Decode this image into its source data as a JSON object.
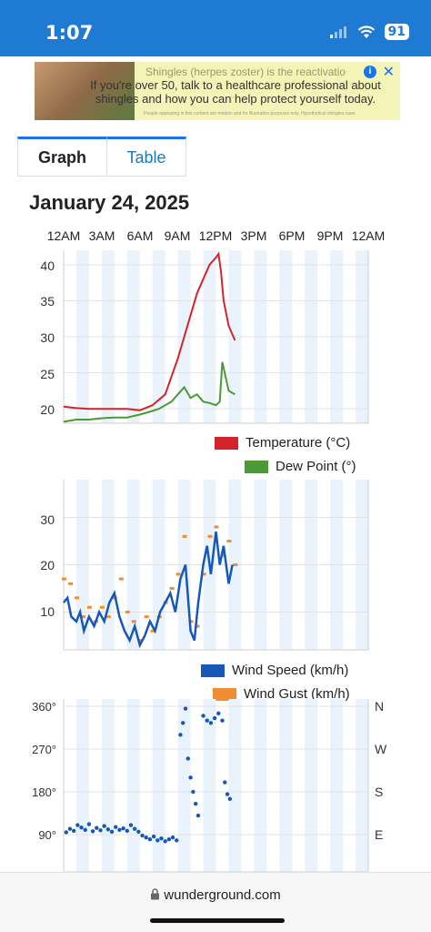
{
  "status": {
    "time": "1:07",
    "battery": "91"
  },
  "ad": {
    "text": "If you're over 50, talk to a healthcare professional about shingles and how you can help protect yourself today.",
    "background_text": "Shingles (herpes zoster) is the reactivatio",
    "fine_print": "People appearing in this content are models and for illustrative purposes only. Hypothetical shingles case.",
    "info_icon": "info-icon",
    "close_icon": "close-icon"
  },
  "tabs": [
    {
      "label": "Graph"
    },
    {
      "label": "Table"
    }
  ],
  "date_title": "January 24, 2025",
  "hours": [
    "12AM",
    "3AM",
    "6AM",
    "9AM",
    "12PM",
    "3PM",
    "6PM",
    "9PM",
    "12AM"
  ],
  "colors": {
    "status_bar": "#1f7ad4",
    "temperature": "#d4242b",
    "dew_point": "#4a9a36",
    "wind_speed": "#1558b8",
    "wind_gust": "#f28c33",
    "direction": "#1558b8",
    "band": "#eaf3fb"
  },
  "charts": {
    "temp": {
      "y_ticks": [
        "40",
        "35",
        "30",
        "25",
        "20"
      ],
      "legend": [
        "Temperature (°C)",
        "Dew Point (°)"
      ]
    },
    "wind": {
      "y_ticks": [
        "30",
        "20",
        "10"
      ],
      "legend": [
        "Wind Speed (km/h)",
        "Wind Gust (km/h)"
      ]
    },
    "direction": {
      "y_ticks": [
        "360°",
        "270°",
        "180°",
        "90°"
      ],
      "compass": [
        "N",
        "W",
        "S",
        "E"
      ]
    }
  },
  "chart_data": [
    {
      "type": "line",
      "x_unit": "hour of day",
      "xlim": [
        0,
        24
      ],
      "ylim": [
        18,
        42
      ],
      "series": [
        {
          "name": "Temperature (°C)",
          "x": [
            0,
            1,
            2,
            3,
            4,
            5,
            6,
            7,
            8,
            9,
            10,
            10.5,
            11,
            11.5,
            12,
            12.2,
            12.4,
            12.6,
            13,
            13.5
          ],
          "values": [
            20.3,
            20.1,
            20,
            20,
            20,
            20,
            19.8,
            20.5,
            22,
            27,
            33,
            36,
            38,
            40,
            41,
            41.5,
            39,
            35,
            31.5,
            29.5
          ]
        },
        {
          "name": "Dew Point (°)",
          "x": [
            0,
            1,
            2,
            3,
            4,
            5,
            6,
            7,
            7.5,
            8,
            8.5,
            9,
            9.5,
            10,
            10.5,
            11,
            11.5,
            12,
            12.3,
            12.5,
            13,
            13.5
          ],
          "values": [
            18.2,
            18.5,
            18.5,
            18.7,
            18.8,
            18.8,
            19.2,
            19.7,
            20,
            20.5,
            21,
            22,
            23,
            21.5,
            22,
            21,
            20.8,
            20.5,
            21,
            26.5,
            22.5,
            22
          ]
        }
      ]
    },
    {
      "type": "line",
      "x_unit": "hour of day",
      "xlim": [
        0,
        24
      ],
      "ylim": [
        2,
        38
      ],
      "series": [
        {
          "name": "Wind Speed (km/h)",
          "x": [
            0,
            0.3,
            0.6,
            1,
            1.3,
            1.6,
            2,
            2.4,
            2.8,
            3.2,
            3.6,
            4,
            4.4,
            4.8,
            5.2,
            5.6,
            6,
            6.4,
            6.8,
            7.2,
            7.6,
            8,
            8.4,
            8.8,
            9.2,
            9.6,
            10,
            10.3,
            10.6,
            11,
            11.3,
            11.6,
            12,
            12.3,
            12.6,
            13,
            13.3
          ],
          "values": [
            12,
            13,
            9,
            8,
            10,
            6,
            9,
            7,
            10,
            8,
            12,
            14,
            9,
            6,
            4,
            7,
            3,
            5,
            8,
            6,
            10,
            12,
            14,
            10,
            17,
            20,
            6,
            4,
            12,
            20,
            24,
            18,
            27,
            20,
            24,
            16,
            20
          ]
        },
        {
          "name": "Wind Gust (km/h)",
          "x": [
            0,
            0.5,
            1,
            1.5,
            2,
            2.5,
            3,
            3.5,
            4,
            4.5,
            5,
            5.5,
            6,
            6.5,
            7,
            7.5,
            8,
            8.5,
            9,
            9.5,
            10,
            10.5,
            11,
            11.5,
            12,
            12.5,
            13,
            13.5
          ],
          "values": [
            17,
            16,
            13,
            9,
            11,
            8,
            11,
            9,
            13,
            17,
            10,
            8,
            4,
            9,
            6,
            9,
            12,
            15,
            18,
            26,
            8,
            7,
            18,
            26,
            28,
            22,
            25,
            20
          ]
        }
      ]
    },
    {
      "type": "scatter",
      "name": "Wind Direction",
      "x_unit": "hour of day",
      "xlim": [
        0,
        24
      ],
      "ylim": [
        45,
        370
      ],
      "x": [
        0.2,
        0.5,
        0.8,
        1.1,
        1.4,
        1.7,
        2,
        2.3,
        2.6,
        2.9,
        3.2,
        3.5,
        3.8,
        4.1,
        4.4,
        4.7,
        5,
        5.3,
        5.6,
        5.9,
        6.2,
        6.5,
        6.8,
        7.1,
        7.4,
        7.7,
        8,
        8.3,
        8.6,
        8.9,
        9.2,
        9.4,
        9.6,
        9.8,
        10,
        10.2,
        10.4,
        10.6,
        11,
        11.3,
        11.6,
        11.9,
        12.2,
        12.5,
        12.7,
        12.9,
        13.1
      ],
      "values": [
        95,
        102,
        98,
        110,
        105,
        100,
        112,
        97,
        104,
        99,
        108,
        101,
        96,
        106,
        100,
        103,
        98,
        110,
        102,
        96,
        88,
        84,
        80,
        86,
        78,
        82,
        76,
        80,
        84,
        78,
        300,
        325,
        355,
        250,
        210,
        180,
        155,
        130,
        340,
        330,
        325,
        335,
        345,
        330,
        200,
        175,
        165
      ]
    }
  ],
  "footer": {
    "url": "wunderground.com"
  }
}
